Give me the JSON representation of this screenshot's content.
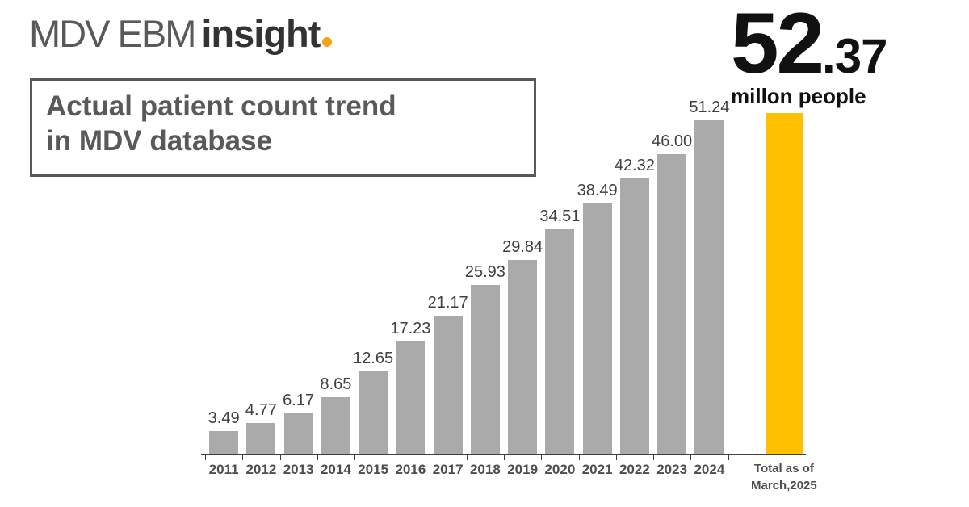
{
  "logo": {
    "brand": "MDV EBM",
    "product": "insight",
    "accent_color": "#F9A11B"
  },
  "header": {
    "title_line1": "Actual patient count trend",
    "title_line2": "in MDV database"
  },
  "highlight": {
    "value_main": "52",
    "value_decimal": ".37",
    "unit": "millon people"
  },
  "chart_data": {
    "type": "bar",
    "title": "Actual patient count trend in MDV database",
    "categories": [
      "2011",
      "2012",
      "2013",
      "2014",
      "2015",
      "2016",
      "2017",
      "2018",
      "2019",
      "2020",
      "2021",
      "2022",
      "2023",
      "2024",
      "Total as of March,2025"
    ],
    "values": [
      3.49,
      4.77,
      6.17,
      8.65,
      12.65,
      17.23,
      21.17,
      25.93,
      29.84,
      34.51,
      38.49,
      42.32,
      46.0,
      51.24,
      52.37
    ],
    "data_labels": [
      "3.49",
      "4.77",
      "6.17",
      "8.65",
      "12.65",
      "17.23",
      "21.17",
      "25.93",
      "29.84",
      "34.51",
      "38.49",
      "42.32",
      "46.00",
      "51.24",
      ""
    ],
    "total_label_lines": [
      "Total as of",
      "March,2025"
    ],
    "highlight_index": 14,
    "gap_before_highlight": true,
    "bar_color": "#AAAAAA",
    "highlight_color": "#FFC000",
    "xlabel": "",
    "ylabel": "",
    "ylim": [
      0,
      52.37
    ],
    "gridlines": false,
    "legend": false,
    "unit": "million people"
  }
}
